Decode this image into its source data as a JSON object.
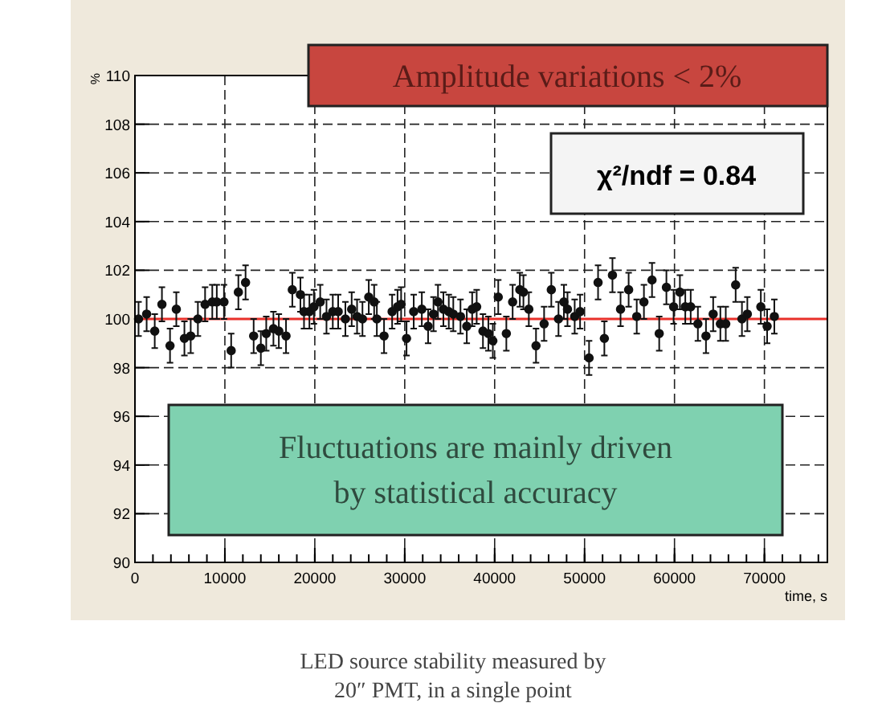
{
  "chart_data": {
    "type": "scatter",
    "title": "Amplitude variations < 2%",
    "xlabel": "time, s",
    "ylabel": "%",
    "annotations": [
      "χ²/ndf = 0.84",
      "Fluctuations are mainly driven by statistical accuracy",
      "LED source stability measured by",
      "20″ PMT, in a single point"
    ],
    "xlim": [
      0,
      77000
    ],
    "xticks": [
      0,
      10000,
      20000,
      30000,
      40000,
      50000,
      60000,
      70000
    ],
    "ylim": [
      90,
      110
    ],
    "yticks": [
      90,
      92,
      94,
      96,
      98,
      100,
      102,
      104,
      106,
      108,
      110
    ],
    "grid": true,
    "marker": "circle",
    "ref_lines": [
      {
        "axis": "y",
        "value": 100,
        "color": "#e8302a"
      }
    ],
    "series": [
      {
        "color": "#111111",
        "x": [
          400,
          1300,
          2200,
          3000,
          3900,
          4600,
          5500,
          6200,
          7000,
          7800,
          8600,
          9100,
          9900,
          10700,
          11500,
          12300,
          13200,
          14000,
          14600,
          15400,
          16000,
          16800,
          17500,
          18400,
          18800,
          19400,
          19900,
          20600,
          21300,
          22000,
          22600,
          23400,
          24100,
          24700,
          25300,
          26000,
          26600,
          26900,
          27700,
          28600,
          29200,
          29600,
          30200,
          31000,
          31900,
          32600,
          33200,
          33700,
          34300,
          34900,
          35400,
          36200,
          36900,
          37500,
          38000,
          38700,
          39300,
          39800,
          40400,
          41300,
          42000,
          42800,
          43200,
          43800,
          44600,
          45500,
          46300,
          47100,
          47700,
          48100,
          48900,
          49500,
          50500,
          51500,
          52200,
          53100,
          54000,
          54900,
          55800,
          56600,
          57500,
          58300,
          59100,
          59900,
          60600,
          61200,
          61800,
          62600,
          63500,
          64300,
          65100,
          65700,
          66800,
          67500,
          68100,
          69600,
          70300,
          71100
        ],
        "values": [
          100.0,
          100.2,
          99.5,
          100.6,
          98.9,
          100.4,
          99.2,
          99.3,
          100.0,
          100.6,
          100.7,
          100.7,
          100.7,
          98.7,
          101.1,
          101.5,
          99.3,
          98.8,
          99.4,
          99.6,
          99.5,
          99.3,
          101.2,
          101.0,
          100.3,
          100.3,
          100.5,
          100.7,
          100.1,
          100.3,
          100.3,
          100.0,
          100.4,
          100.1,
          100.0,
          100.9,
          100.7,
          100.0,
          99.3,
          100.3,
          100.5,
          100.6,
          99.2,
          100.3,
          100.4,
          99.7,
          100.2,
          100.7,
          100.4,
          100.3,
          100.2,
          100.1,
          99.7,
          100.4,
          100.5,
          99.5,
          99.4,
          99.1,
          100.9,
          99.4,
          100.7,
          101.2,
          101.1,
          100.4,
          98.9,
          99.8,
          101.2,
          100.0,
          100.7,
          100.4,
          100.1,
          100.3,
          98.4,
          101.5,
          99.2,
          101.8,
          100.4,
          101.2,
          100.1,
          100.7,
          101.6,
          99.4,
          101.3,
          100.5,
          101.1,
          100.5,
          100.5,
          99.8,
          99.3,
          100.2,
          99.8,
          99.8,
          101.4,
          100.0,
          100.2,
          100.5,
          99.7,
          100.1
        ],
        "errors": [
          0.7,
          0.7,
          0.7,
          0.7,
          0.7,
          0.7,
          0.7,
          0.7,
          0.7,
          0.7,
          0.7,
          0.7,
          0.7,
          0.7,
          0.7,
          0.7,
          0.7,
          0.7,
          0.7,
          0.7,
          0.7,
          0.7,
          0.7,
          0.7,
          0.7,
          0.7,
          0.7,
          0.7,
          0.7,
          0.7,
          0.7,
          0.7,
          0.7,
          0.7,
          0.7,
          0.7,
          0.7,
          0.7,
          0.7,
          0.7,
          0.7,
          0.7,
          0.7,
          0.7,
          0.7,
          0.7,
          0.7,
          0.7,
          0.7,
          0.7,
          0.7,
          0.7,
          0.7,
          0.7,
          0.7,
          0.7,
          0.7,
          0.7,
          0.7,
          0.7,
          0.7,
          0.7,
          0.7,
          0.7,
          0.7,
          0.7,
          0.7,
          0.7,
          0.7,
          0.7,
          0.7,
          0.7,
          0.7,
          0.7,
          0.7,
          0.7,
          0.7,
          0.7,
          0.7,
          0.7,
          0.7,
          0.7,
          0.7,
          0.7,
          0.7,
          0.7,
          0.7,
          0.7,
          0.7,
          0.7,
          0.7,
          0.7,
          0.7,
          0.7,
          0.7,
          0.7,
          0.7,
          0.7
        ]
      }
    ]
  }
}
